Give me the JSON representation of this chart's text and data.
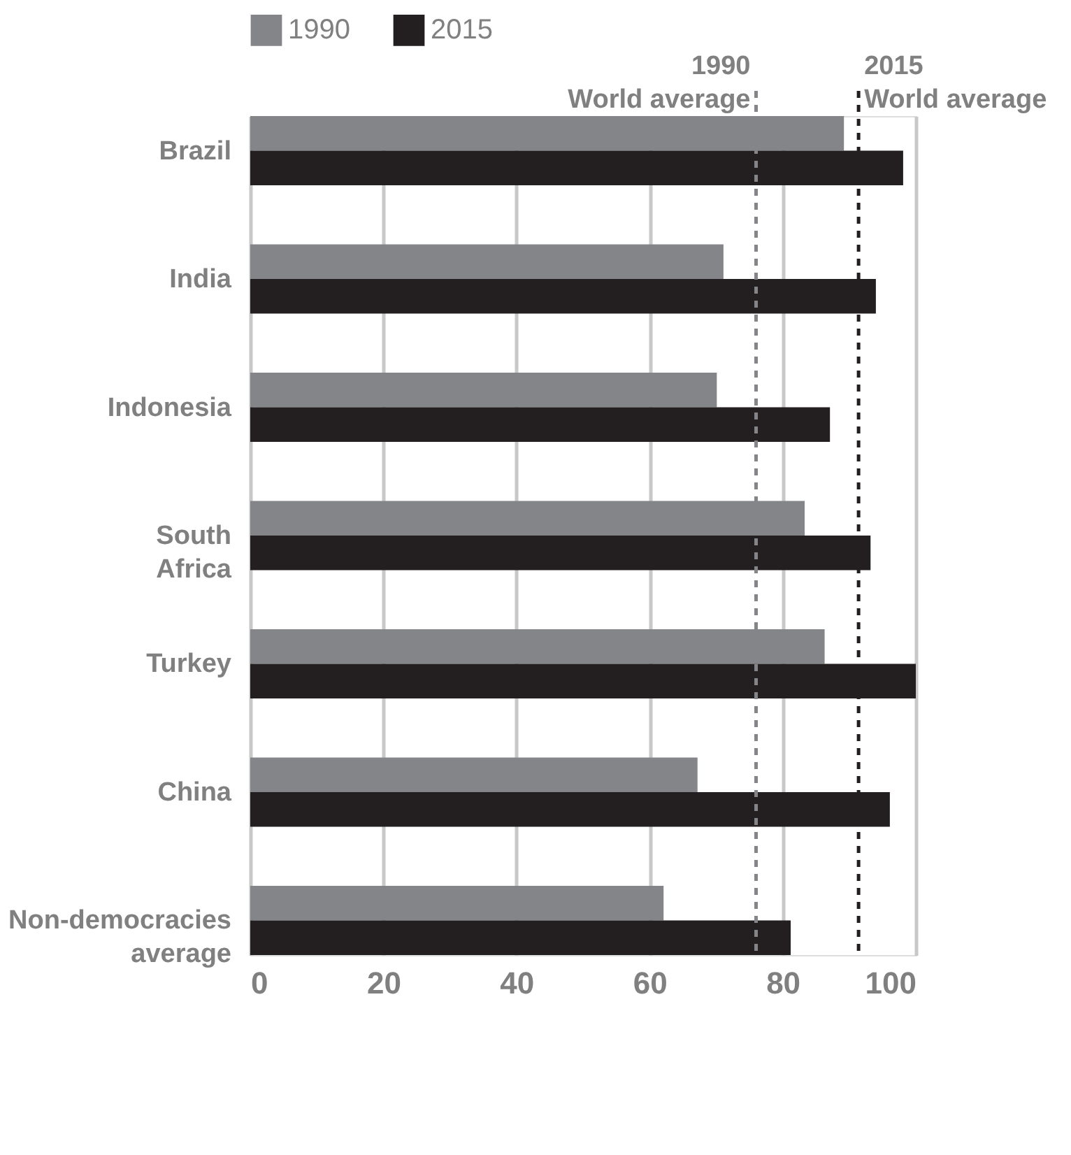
{
  "chart_data": {
    "type": "bar",
    "orientation": "horizontal",
    "categories": [
      "Brazil",
      "India",
      "Indonesia",
      "South Africa",
      "Turkey",
      "China",
      "Non-democracies average"
    ],
    "series": [
      {
        "name": "1990",
        "color": "#848589",
        "values": [
          89.2,
          71.1,
          70.1,
          83.3,
          86.3,
          67.2,
          62.1
        ]
      },
      {
        "name": "2015",
        "color": "#231f20",
        "values": [
          98.1,
          94.0,
          87.1,
          93.2,
          100,
          96.1,
          81.2
        ]
      }
    ],
    "xlim": [
      0,
      100
    ],
    "xticks": [
      0,
      20,
      40,
      60,
      80,
      100
    ],
    "grid": "x",
    "legend": "top",
    "ref_lines": [
      {
        "axis": "x",
        "value": 76,
        "label": "1990\nWorld average",
        "color": "#848589",
        "line_style": "dashed"
      },
      {
        "axis": "x",
        "value": 91.4,
        "label": "2015\nWorld average",
        "color": "#231f20",
        "line_style": "dashed"
      }
    ]
  }
}
